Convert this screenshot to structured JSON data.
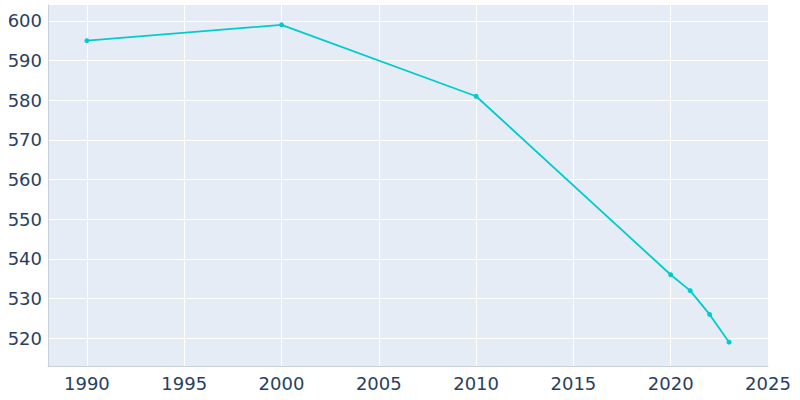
{
  "chart_data": {
    "type": "line",
    "x": [
      1990,
      2000,
      2010,
      2020,
      2021,
      2022,
      2023
    ],
    "values": [
      595,
      599,
      581,
      536,
      532,
      526,
      519
    ],
    "color": "#00cccc",
    "marker": "circle",
    "xlim": [
      1988,
      2025
    ],
    "xticks": [
      1990,
      1995,
      2000,
      2005,
      2010,
      2015,
      2020,
      2025
    ],
    "ylim": [
      513,
      604
    ],
    "yticks": [
      520,
      530,
      540,
      550,
      560,
      570,
      580,
      590,
      600
    ],
    "grid": true
  }
}
